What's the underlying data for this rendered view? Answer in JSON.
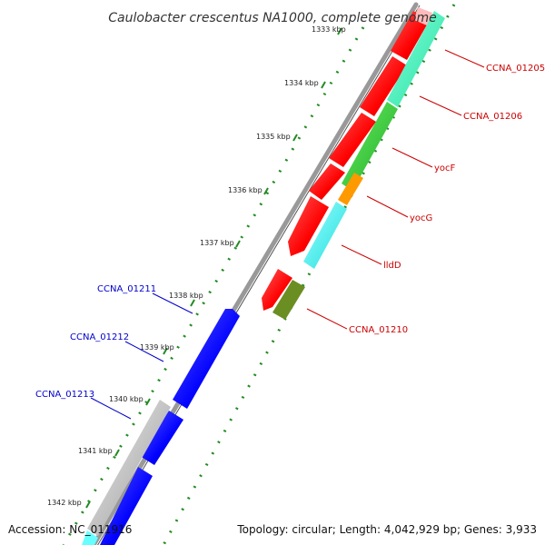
{
  "title": "Caulobacter crescentus NA1000, complete genome",
  "footer": {
    "accession": "Accession: NC_011916",
    "summary": "Topology: circular; Length: 4,042,929 bp; Genes: 3,933"
  },
  "ticks": [
    "1333 kbp",
    "1334 kbp",
    "1335 kbp",
    "1336 kbp",
    "1337 kbp",
    "1338 kbp",
    "1339 kbp",
    "1340 kbp",
    "1341 kbp",
    "1342 kbp"
  ],
  "genes_right": [
    "CCNA_01205",
    "CCNA_01206",
    "yocF",
    "yocG",
    "lldD",
    "CCNA_01210"
  ],
  "genes_left": [
    "CCNA_01211",
    "CCNA_01212",
    "CCNA_01213"
  ],
  "colors": {
    "forward_cds": "#ff0000",
    "reverse_cds": "#0000ff",
    "label_right": "#cc0000",
    "label_left": "#0000cc",
    "backbone": "#888888",
    "dots": "#228b22",
    "feature_green": "#33cc33",
    "feature_teal": "#33ffbb",
    "feature_cyan": "#33ffff",
    "feature_orange": "#ff9900",
    "feature_olive": "#6b8e23",
    "feature_grey": "#bbbbbb"
  }
}
